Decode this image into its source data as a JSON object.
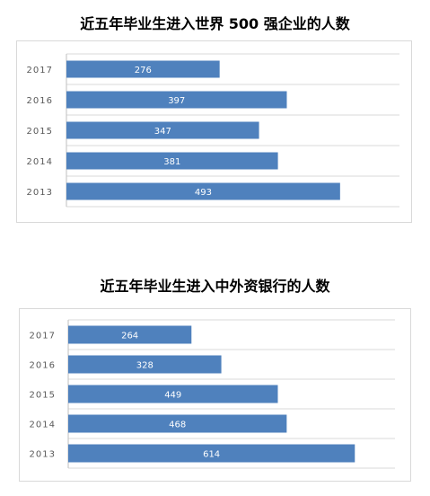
{
  "chart_data": [
    {
      "type": "bar",
      "orientation": "horizontal",
      "title": "近五年毕业生进入世界 500 强企业的人数",
      "categories": [
        "2017",
        "2016",
        "2015",
        "2014",
        "2013"
      ],
      "values": [
        276,
        397,
        347,
        381,
        493
      ],
      "xlim": [
        0,
        600
      ],
      "grid": true,
      "bar_color": "#4f81bd",
      "data_labels": true
    },
    {
      "type": "bar",
      "orientation": "horizontal",
      "title": "近五年毕业生进入中外资银行的人数",
      "categories": [
        "2017",
        "2016",
        "2015",
        "2014",
        "2013"
      ],
      "values": [
        264,
        328,
        449,
        468,
        614
      ],
      "xlim": [
        0,
        700
      ],
      "grid": true,
      "bar_color": "#4f81bd",
      "data_labels": true
    }
  ]
}
